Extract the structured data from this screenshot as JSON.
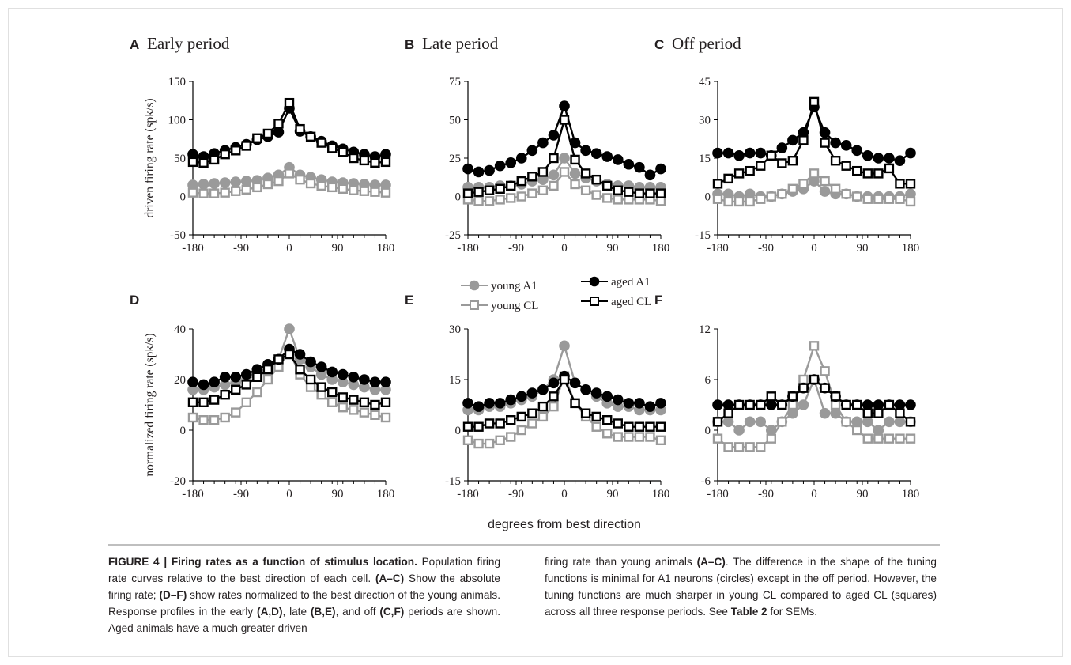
{
  "figure": {
    "legend": {
      "entries": [
        {
          "key": "young-a1",
          "label": "young A1",
          "color": "#9a9a9a",
          "marker": "circle"
        },
        {
          "key": "young-cl",
          "label": "young CL",
          "color": "#9a9a9a",
          "marker": "open-square"
        },
        {
          "key": "aged-a1",
          "label": "aged A1",
          "color": "#000000",
          "marker": "circle"
        },
        {
          "key": "aged-cl",
          "label": "aged CL",
          "color": "#000000",
          "marker": "open-square"
        }
      ]
    },
    "shared_xlabel": "degrees from best direction",
    "caption": {
      "label": "FIGURE 4 | Firing rates as a function of stimulus location.",
      "left_text": [
        {
          "t": " Population firing rate curves relative to the best direction of each cell. ",
          "b": false
        },
        {
          "t": "(A–C)",
          "b": true
        },
        {
          "t": " Show the absolute firing rate; ",
          "b": false
        },
        {
          "t": "(D–F)",
          "b": true
        },
        {
          "t": " show rates normalized to the best direction of the young animals. Response profiles in the early ",
          "b": false
        },
        {
          "t": "(A,D)",
          "b": true
        },
        {
          "t": ", late ",
          "b": false
        },
        {
          "t": "(B,E)",
          "b": true
        },
        {
          "t": ", and off ",
          "b": false
        },
        {
          "t": "(C,F)",
          "b": true
        },
        {
          "t": " periods are shown. Aged animals have a much greater driven",
          "b": false
        }
      ],
      "right_text": [
        {
          "t": "firing rate than young animals ",
          "b": false
        },
        {
          "t": "(A–C)",
          "b": true
        },
        {
          "t": ". The difference in the shape of the tuning functions is minimal for A1 neurons (circles) except in the off period. However, the tuning functions are much sharper in young CL compared to aged CL (squares) across all three response periods. See ",
          "b": false
        },
        {
          "t": "Table 2",
          "b": true
        },
        {
          "t": " for SEMs.",
          "b": false
        }
      ]
    }
  },
  "chart_data": [
    {
      "panel": "A",
      "title": "Early period",
      "type": "line",
      "ylabel": "driven firing rate (spk/s)",
      "xlabel": "",
      "xlim": [
        -180,
        180
      ],
      "xticks": [
        -180,
        -90,
        0,
        90,
        180
      ],
      "ylim": [
        -50,
        150
      ],
      "yticks": [
        -50,
        0,
        50,
        100,
        150
      ],
      "x": [
        -180,
        -160,
        -140,
        -120,
        -100,
        -80,
        -60,
        -40,
        -20,
        0,
        20,
        40,
        60,
        80,
        100,
        120,
        140,
        160,
        180
      ],
      "series": [
        {
          "name": "young A1",
          "values": [
            15,
            16,
            17,
            18,
            19,
            20,
            21,
            24,
            28,
            38,
            28,
            25,
            22,
            19,
            18,
            17,
            16,
            15,
            15
          ]
        },
        {
          "name": "young CL",
          "values": [
            5,
            4,
            4,
            5,
            7,
            9,
            12,
            16,
            20,
            30,
            22,
            17,
            14,
            12,
            10,
            8,
            7,
            6,
            5
          ]
        },
        {
          "name": "aged A1",
          "values": [
            55,
            52,
            56,
            60,
            64,
            68,
            74,
            78,
            84,
            115,
            85,
            78,
            72,
            66,
            62,
            58,
            55,
            52,
            55
          ]
        },
        {
          "name": "aged CL",
          "values": [
            45,
            44,
            48,
            55,
            60,
            66,
            76,
            82,
            95,
            122,
            88,
            78,
            70,
            63,
            58,
            50,
            47,
            44,
            45
          ]
        }
      ]
    },
    {
      "panel": "B",
      "title": "Late period",
      "type": "line",
      "ylabel": "",
      "xlabel": "",
      "xlim": [
        -180,
        180
      ],
      "xticks": [
        -180,
        -90,
        0,
        90,
        180
      ],
      "ylim": [
        -25,
        75
      ],
      "yticks": [
        -25,
        0,
        25,
        50,
        75
      ],
      "x": [
        -180,
        -160,
        -140,
        -120,
        -100,
        -80,
        -60,
        -40,
        -20,
        0,
        20,
        40,
        60,
        80,
        100,
        120,
        140,
        160,
        180
      ],
      "series": [
        {
          "name": "young A1",
          "values": [
            6,
            6,
            6,
            7,
            7,
            8,
            10,
            11,
            14,
            25,
            15,
            12,
            10,
            8,
            7,
            7,
            6,
            6,
            6
          ]
        },
        {
          "name": "young CL",
          "values": [
            -2,
            -3,
            -3,
            -2,
            -1,
            0,
            2,
            4,
            7,
            16,
            8,
            4,
            1,
            -1,
            -2,
            -2,
            -2,
            -2,
            -3
          ]
        },
        {
          "name": "aged A1",
          "values": [
            18,
            16,
            17,
            20,
            22,
            25,
            30,
            35,
            40,
            59,
            35,
            30,
            28,
            26,
            24,
            21,
            19,
            14,
            18
          ]
        },
        {
          "name": "aged CL",
          "values": [
            2,
            3,
            4,
            5,
            7,
            10,
            13,
            16,
            25,
            50,
            24,
            15,
            11,
            7,
            4,
            3,
            2,
            2,
            2
          ]
        }
      ]
    },
    {
      "panel": "C",
      "title": "Off period",
      "type": "line",
      "ylabel": "",
      "xlabel": "",
      "xlim": [
        -180,
        180
      ],
      "xticks": [
        -180,
        -90,
        0,
        90,
        180
      ],
      "ylim": [
        -15,
        45
      ],
      "yticks": [
        -15,
        0,
        15,
        30,
        45
      ],
      "x": [
        -180,
        -160,
        -140,
        -120,
        -100,
        -80,
        -60,
        -40,
        -20,
        0,
        20,
        40,
        60,
        80,
        100,
        120,
        140,
        160,
        180
      ],
      "series": [
        {
          "name": "young A1",
          "values": [
            1,
            1,
            0,
            1,
            0,
            0,
            1,
            2,
            3,
            6,
            2,
            1,
            1,
            0,
            0,
            0,
            0,
            0,
            1
          ]
        },
        {
          "name": "young CL",
          "values": [
            -1,
            -2,
            -2,
            -2,
            -1,
            0,
            1,
            3,
            5,
            9,
            6,
            3,
            1,
            0,
            -1,
            -1,
            -1,
            -1,
            -2
          ]
        },
        {
          "name": "aged A1",
          "values": [
            17,
            17,
            16,
            17,
            17,
            16,
            19,
            22,
            25,
            35,
            25,
            21,
            20,
            18,
            16,
            15,
            15,
            14,
            17
          ]
        },
        {
          "name": "aged CL",
          "values": [
            5,
            7,
            9,
            10,
            12,
            16,
            13,
            14,
            22,
            37,
            21,
            14,
            12,
            10,
            9,
            9,
            11,
            5,
            5
          ]
        }
      ]
    },
    {
      "panel": "D",
      "title": "",
      "type": "line",
      "ylabel": "normalized firing rate (spk/s)",
      "xlabel": "",
      "xlim": [
        -180,
        180
      ],
      "xticks": [
        -180,
        -90,
        0,
        90,
        180
      ],
      "ylim": [
        -20,
        40
      ],
      "yticks": [
        -20,
        0,
        20,
        40
      ],
      "x": [
        -180,
        -160,
        -140,
        -120,
        -100,
        -80,
        -60,
        -40,
        -20,
        0,
        20,
        40,
        60,
        80,
        100,
        120,
        140,
        160,
        180
      ],
      "series": [
        {
          "name": "young A1",
          "values": [
            16,
            16,
            17,
            18,
            19,
            20,
            22,
            25,
            28,
            40,
            28,
            25,
            22,
            20,
            19,
            18,
            17,
            16,
            16
          ]
        },
        {
          "name": "young CL",
          "values": [
            5,
            4,
            4,
            5,
            7,
            11,
            15,
            20,
            25,
            31,
            22,
            17,
            14,
            11,
            9,
            8,
            7,
            6,
            5
          ]
        },
        {
          "name": "aged A1",
          "values": [
            19,
            18,
            19,
            21,
            21,
            22,
            24,
            26,
            28,
            32,
            30,
            27,
            25,
            23,
            22,
            21,
            20,
            19,
            19
          ]
        },
        {
          "name": "aged CL",
          "values": [
            11,
            11,
            12,
            14,
            16,
            18,
            21,
            24,
            28,
            30,
            24,
            20,
            17,
            15,
            13,
            12,
            11,
            10,
            11
          ]
        }
      ]
    },
    {
      "panel": "E",
      "title": "",
      "type": "line",
      "ylabel": "",
      "xlabel": "",
      "xlim": [
        -180,
        180
      ],
      "xticks": [
        -180,
        -90,
        0,
        90,
        180
      ],
      "ylim": [
        -15,
        30
      ],
      "yticks": [
        -15,
        0,
        15,
        30
      ],
      "x": [
        -180,
        -160,
        -140,
        -120,
        -100,
        -80,
        -60,
        -40,
        -20,
        0,
        20,
        40,
        60,
        80,
        100,
        120,
        140,
        160,
        180
      ],
      "series": [
        {
          "name": "young A1",
          "values": [
            6,
            6,
            7,
            7,
            8,
            9,
            10,
            12,
            15,
            25,
            14,
            12,
            10,
            8,
            7,
            7,
            6,
            6,
            6
          ]
        },
        {
          "name": "young CL",
          "values": [
            -3,
            -4,
            -4,
            -3,
            -2,
            0,
            2,
            4,
            7,
            16,
            8,
            4,
            1,
            -1,
            -2,
            -2,
            -2,
            -2,
            -3
          ]
        },
        {
          "name": "aged A1",
          "values": [
            8,
            7,
            8,
            8,
            9,
            10,
            11,
            12,
            14,
            16,
            14,
            12,
            11,
            10,
            9,
            8,
            8,
            7,
            8
          ]
        },
        {
          "name": "aged CL",
          "values": [
            1,
            1,
            2,
            2,
            3,
            4,
            5,
            7,
            10,
            15,
            8,
            5,
            4,
            3,
            2,
            1,
            1,
            1,
            1
          ]
        }
      ]
    },
    {
      "panel": "F",
      "title": "",
      "type": "line",
      "ylabel": "",
      "xlabel": "",
      "xlim": [
        -180,
        180
      ],
      "xticks": [
        -180,
        -90,
        0,
        90,
        180
      ],
      "ylim": [
        -6,
        12
      ],
      "yticks": [
        -6,
        0,
        6,
        12
      ],
      "x": [
        -180,
        -160,
        -140,
        -120,
        -100,
        -80,
        -60,
        -40,
        -20,
        0,
        20,
        40,
        60,
        80,
        100,
        120,
        140,
        160,
        180
      ],
      "series": [
        {
          "name": "young A1",
          "values": [
            1,
            1,
            0,
            1,
            1,
            0,
            1,
            2,
            3,
            6,
            2,
            2,
            1,
            1,
            1,
            0,
            1,
            1,
            1
          ]
        },
        {
          "name": "young CL",
          "values": [
            -1,
            -2,
            -2,
            -2,
            -2,
            -1,
            1,
            3,
            6,
            10,
            7,
            3,
            1,
            0,
            -1,
            -1,
            -1,
            -1,
            -1
          ]
        },
        {
          "name": "aged A1",
          "values": [
            3,
            3,
            3,
            3,
            3,
            3,
            3,
            4,
            5,
            6,
            5,
            4,
            3,
            3,
            3,
            3,
            3,
            3,
            3
          ]
        },
        {
          "name": "aged CL",
          "values": [
            1,
            2,
            3,
            3,
            3,
            4,
            3,
            4,
            5,
            6,
            5,
            4,
            3,
            3,
            2,
            2,
            3,
            2,
            1
          ]
        }
      ]
    }
  ]
}
